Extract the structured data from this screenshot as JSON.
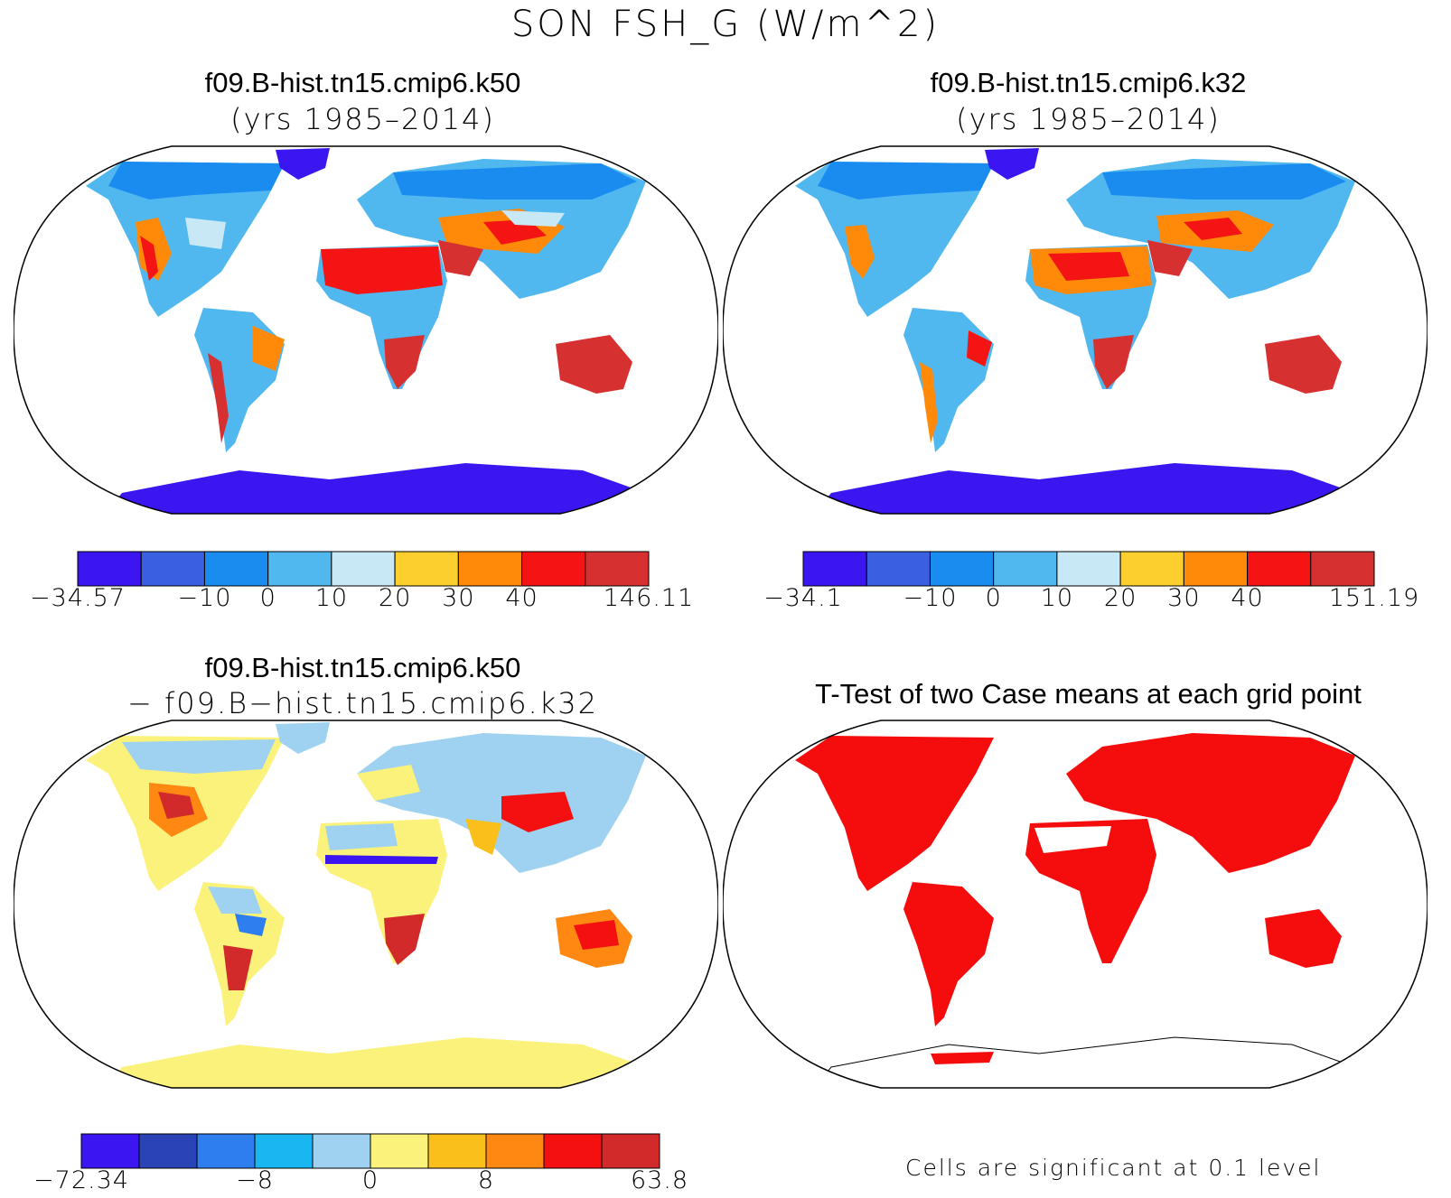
{
  "figure": {
    "title": "SON FSH_G (W/m^2)"
  },
  "panels": [
    {
      "id": "k50",
      "title_line1": "f09.B-hist.tn15.cmip6.k50",
      "title_line2": "(yrs 1985–2014)",
      "colorbar": {
        "colors": [
          "#3b16f0",
          "#3a5fe0",
          "#1a8cf0",
          "#50b8ef",
          "#c8e8f6",
          "#fccf2e",
          "#ff8a0a",
          "#f41414",
          "#d63030"
        ],
        "tick_labels": [
          "−34.57",
          "−10",
          "0",
          "10",
          "20",
          "30",
          "40",
          "146.11"
        ],
        "tick_boundaries": [
          0,
          2,
          3,
          4,
          5,
          6,
          7,
          9
        ]
      }
    },
    {
      "id": "k32",
      "title_line1": "f09.B-hist.tn15.cmip6.k32",
      "title_line2": "(yrs 1985–2014)",
      "colorbar": {
        "colors": [
          "#3b16f0",
          "#3a5fe0",
          "#1a8cf0",
          "#50b8ef",
          "#c8e8f6",
          "#fccf2e",
          "#ff8a0a",
          "#f41414",
          "#d63030"
        ],
        "tick_labels": [
          "−34.1",
          "−10",
          "0",
          "10",
          "20",
          "30",
          "40",
          "151.19"
        ],
        "tick_boundaries": [
          0,
          2,
          3,
          4,
          5,
          6,
          7,
          9
        ]
      }
    },
    {
      "id": "diff",
      "title_line1": "f09.B-hist.tn15.cmip6.k50",
      "title_line2": "− f09.B−hist.tn15.cmip6.k32",
      "colorbar": {
        "colors": [
          "#3b16f0",
          "#2a44b8",
          "#2f7ef0",
          "#19b6f2",
          "#9ed2f0",
          "#fbf27c",
          "#fbbf1c",
          "#ff8812",
          "#f41010",
          "#d22a2a"
        ],
        "tick_labels": [
          "−72.34",
          "−8",
          "0",
          "8",
          "63.8"
        ],
        "tick_boundaries": [
          0,
          3,
          5,
          7,
          10
        ]
      }
    },
    {
      "id": "ttest",
      "title_line1": "T-Test of two Case means at each grid point",
      "note": "Cells are significant at 0.1 level"
    }
  ]
}
